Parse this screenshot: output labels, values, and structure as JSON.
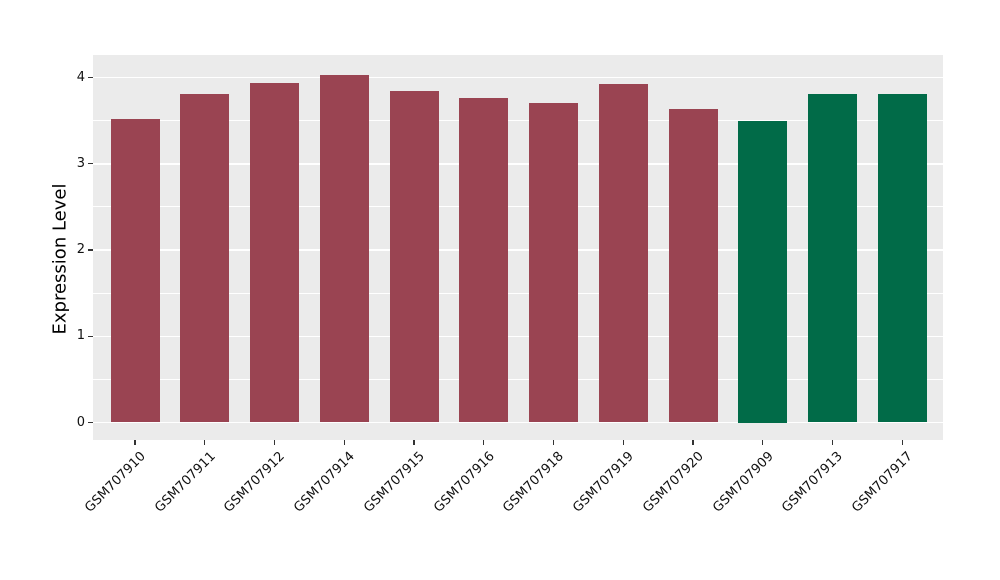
{
  "chart_data": {
    "type": "bar",
    "title": "",
    "xlabel": "",
    "ylabel": "Expression Level",
    "categories": [
      "GSM707910",
      "GSM707911",
      "GSM707912",
      "GSM707914",
      "GSM707915",
      "GSM707916",
      "GSM707918",
      "GSM707919",
      "GSM707920",
      "GSM707909",
      "GSM707913",
      "GSM707917"
    ],
    "values": [
      3.52,
      3.81,
      3.94,
      4.03,
      3.84,
      3.76,
      3.71,
      3.92,
      3.64,
      3.5,
      3.81,
      3.81
    ],
    "bar_colors": [
      "#9A4452",
      "#9A4452",
      "#9A4452",
      "#9A4452",
      "#9A4452",
      "#9A4452",
      "#9A4452",
      "#9A4452",
      "#9A4452",
      "#016B48",
      "#016B48",
      "#016B48"
    ],
    "yticks": [
      0,
      1,
      2,
      3,
      4
    ],
    "yticks_minor": [
      0.5,
      1.5,
      2.5,
      3.5
    ],
    "ylim": [
      -0.21,
      4.25
    ],
    "grid": true,
    "legend": "none",
    "colors": {
      "panel_bg": "#EBEBEB",
      "grid_major": "#FFFFFF",
      "grid_minor": "#FFFFFF",
      "tick_mark": "#333333",
      "text": "#111111",
      "red_group": "#9A4452",
      "green_group": "#016B48"
    }
  }
}
